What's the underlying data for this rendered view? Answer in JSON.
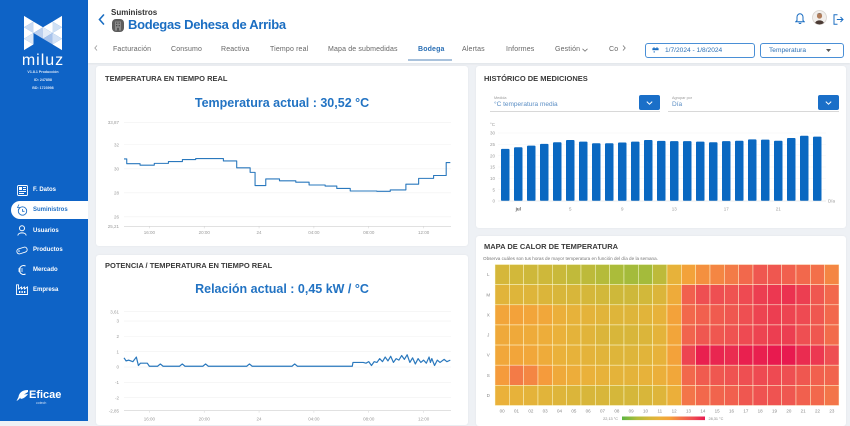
{
  "sidebar": {
    "brand": "miluz",
    "version": "V1.8.1 Producción",
    "meta_1": "ID: 247858",
    "meta_2": "BD: 1723998",
    "items": [
      {
        "label": "F. Datos",
        "icon": "data-grid-icon"
      },
      {
        "label": "Suministros",
        "icon": "supply-icon",
        "active": true
      },
      {
        "label": "Usuarios",
        "icon": "user-icon"
      },
      {
        "label": "Productos",
        "icon": "product-tag-icon"
      },
      {
        "label": "Mercado",
        "icon": "euro-icon"
      },
      {
        "label": "Empresa",
        "icon": "factory-icon"
      }
    ],
    "footer_logo": {
      "name": "Eficae",
      "tagline": "cotech"
    }
  },
  "header": {
    "breadcrumb": "Suministros",
    "title": "Bodegas Dehesa de Arriba",
    "icons": [
      "bell-icon",
      "user-avatar",
      "logout-icon"
    ]
  },
  "tabs": {
    "items": [
      {
        "label": "Facturación"
      },
      {
        "label": "Consumo"
      },
      {
        "label": "Reactiva"
      },
      {
        "label": "Tiempo real"
      },
      {
        "label": "Mapa de submedidas"
      },
      {
        "label": "Bodega",
        "active": true
      },
      {
        "label": "Alertas"
      },
      {
        "label": "Informes"
      },
      {
        "label": "Gestión",
        "dropdown": true
      },
      {
        "label": "Co"
      }
    ]
  },
  "filters": {
    "date_range": "1/7/2024 - 1/8/2024",
    "variable": "Temperatura"
  },
  "panels": {
    "temp_realtime": {
      "title": "TEMPERATURA EN TIEMPO REAL",
      "headline": "Temperatura actual : 30,52 °C"
    },
    "power_temp": {
      "title": "POTENCIA / TEMPERATURA EN TIEMPO REAL",
      "headline": "Relación actual : 0,45 kW / °C"
    },
    "history": {
      "title": "HISTÓRICO DE MEDICIONES",
      "measure_label": "Medida",
      "measure_value": "°C temperatura media",
      "group_label": "Agrupar por",
      "group_value": "Día"
    },
    "heatmap": {
      "title": "MAPA DE CALOR DE TEMPERATURA",
      "subtitle": "Observa cuáles son tus horas de mayor temperatura en función del día de la semana."
    }
  },
  "colors": {
    "sidebar": "#0e63c6",
    "accent": "#1b6ec2",
    "line": "#2a78bd",
    "bar": "#0a68c1",
    "heat_scale": [
      "#5db543",
      "#aebc3a",
      "#d2b83a",
      "#eab13a",
      "#f5a03a",
      "#f3714a",
      "#ee4d52",
      "#e8194f"
    ]
  },
  "chart_data": [
    {
      "type": "line",
      "title": "Temperatura actual : 30,52 °C",
      "xlabel": "",
      "ylabel": "°C",
      "step": true,
      "xlim": [
        14.15,
        38.0
      ],
      "ylim": [
        25.21,
        33.87
      ],
      "grid": true,
      "y_ticks": [
        {
          "value": 33.87,
          "label": "33,87"
        },
        {
          "value": 32,
          "label": "32"
        },
        {
          "value": 30,
          "label": "30"
        },
        {
          "value": 28,
          "label": "28"
        },
        {
          "value": 26,
          "label": "26"
        },
        {
          "value": 25.21,
          "label": "25,21"
        }
      ],
      "x_ticks": [
        {
          "t": 16,
          "label": "16:00"
        },
        {
          "t": 20,
          "label": "20:00"
        },
        {
          "t": 24,
          "label": "24"
        },
        {
          "t": 28,
          "label": "04:00"
        },
        {
          "t": 32,
          "label": "08:00"
        },
        {
          "t": 36,
          "label": "12:00"
        }
      ],
      "series": [
        {
          "name": "Temperatura",
          "points": [
            [
              14.15,
              30.82
            ],
            [
              14.35,
              30.42
            ],
            [
              15.32,
              30.3
            ],
            [
              16.36,
              30.45
            ],
            [
              17.39,
              30.6
            ],
            [
              18.41,
              30.77
            ],
            [
              19.38,
              30.85
            ],
            [
              21.4,
              30.65
            ],
            [
              22.37,
              30.08
            ],
            [
              23.35,
              29.7
            ],
            [
              23.71,
              28.6
            ],
            [
              24.49,
              29.15
            ],
            [
              25.49,
              29.0
            ],
            [
              26.68,
              28.88
            ],
            [
              27.65,
              28.65
            ],
            [
              28.82,
              28.56
            ],
            [
              29.67,
              28.36
            ],
            [
              30.65,
              28.15
            ],
            [
              32.59,
              28.12
            ],
            [
              33.57,
              28.24
            ],
            [
              34.71,
              28.72
            ],
            [
              35.64,
              29.2
            ],
            [
              36.73,
              29.44
            ],
            [
              37.65,
              30.52
            ],
            [
              37.95,
              30.52
            ]
          ]
        }
      ]
    },
    {
      "type": "line",
      "title": "Relación actual : 0,45 kW / °C",
      "xlabel": "",
      "ylabel": "kW / °C",
      "step": false,
      "xlim": [
        14.15,
        38.0
      ],
      "ylim": [
        -2.85,
        3.61
      ],
      "grid": true,
      "y_ticks": [
        {
          "value": 3.61,
          "label": "3,61"
        },
        {
          "value": 3,
          "label": "3"
        },
        {
          "value": 2,
          "label": "2"
        },
        {
          "value": 1,
          "label": "1"
        },
        {
          "value": 0,
          "label": "0"
        },
        {
          "value": -1,
          "label": "-1"
        },
        {
          "value": -2,
          "label": "-2"
        },
        {
          "value": -2.85,
          "label": "-2,85"
        }
      ],
      "x_ticks": [
        {
          "t": 16,
          "label": "16:00"
        },
        {
          "t": 20,
          "label": "20:00"
        },
        {
          "t": 24,
          "label": "24"
        },
        {
          "t": 28,
          "label": "04:00"
        },
        {
          "t": 32,
          "label": "08:00"
        },
        {
          "t": 36,
          "label": "12:00"
        }
      ],
      "series": [
        {
          "name": "Potencia / Temperatura",
          "points": [
            [
              14.15,
              0.6
            ],
            [
              14.3,
              0.4
            ],
            [
              14.5,
              0.45
            ],
            [
              14.8,
              0.35
            ],
            [
              15.05,
              0.65
            ],
            [
              15.2,
              0.1
            ],
            [
              15.35,
              0.25
            ],
            [
              15.85,
              0.25
            ],
            [
              16.0,
              0.05
            ],
            [
              16.6,
              0.05
            ],
            [
              16.8,
              0.2
            ],
            [
              17.0,
              0.05
            ],
            [
              18.2,
              0.05
            ],
            [
              18.4,
              0.2
            ],
            [
              18.6,
              0.05
            ],
            [
              19.9,
              0.05
            ],
            [
              20.1,
              0.2
            ],
            [
              20.3,
              0.05
            ],
            [
              23.1,
              0.05
            ],
            [
              23.3,
              0.2
            ],
            [
              23.5,
              0.05
            ],
            [
              26.4,
              0.05
            ],
            [
              26.6,
              0.2
            ],
            [
              26.8,
              0.05
            ],
            [
              30.8,
              0.05
            ],
            [
              30.85,
              0.3
            ],
            [
              31.6,
              0.3
            ],
            [
              31.8,
              0.25
            ],
            [
              32.0,
              0.35
            ],
            [
              32.2,
              0.1
            ],
            [
              32.4,
              0.35
            ],
            [
              32.6,
              0.3
            ],
            [
              32.8,
              0.55
            ],
            [
              33.0,
              0.35
            ],
            [
              33.2,
              0.65
            ],
            [
              33.4,
              0.4
            ],
            [
              33.6,
              0.7
            ],
            [
              33.8,
              0.3
            ],
            [
              34.0,
              0.55
            ],
            [
              34.2,
              0.45
            ],
            [
              34.4,
              0.75
            ],
            [
              34.6,
              0.5
            ],
            [
              34.8,
              0.8
            ],
            [
              35.0,
              0.3
            ],
            [
              35.2,
              0.6
            ],
            [
              35.4,
              0.2
            ],
            [
              35.6,
              0.55
            ],
            [
              35.8,
              0.3
            ],
            [
              36.0,
              0.45
            ],
            [
              36.2,
              0.25
            ],
            [
              36.4,
              0.65
            ],
            [
              36.5,
              0.3
            ],
            [
              36.6,
              0.55
            ],
            [
              36.8,
              0.1
            ],
            [
              37.0,
              0.45
            ],
            [
              37.2,
              0.3
            ],
            [
              37.5,
              0.5
            ],
            [
              37.7,
              0.35
            ],
            [
              37.95,
              0.45
            ]
          ]
        }
      ]
    },
    {
      "type": "bar",
      "title": "Histórico de mediciones",
      "xlabel": "Día",
      "ylabel": "°C",
      "ylim": [
        0,
        30
      ],
      "y_ticks": [
        0,
        5,
        10,
        15,
        20,
        25,
        30
      ],
      "categories": [
        "30",
        "1",
        "2",
        "3",
        "4",
        "5",
        "6",
        "7",
        "8",
        "9",
        "10",
        "11",
        "12",
        "13",
        "14",
        "15",
        "16",
        "17",
        "18",
        "19",
        "20",
        "21",
        "22",
        "23",
        "24"
      ],
      "values": [
        23.0,
        23.7,
        24.4,
        25.2,
        25.9,
        26.9,
        26.2,
        25.5,
        25.5,
        25.8,
        26.2,
        26.9,
        26.5,
        26.4,
        26.4,
        26.2,
        25.9,
        26.4,
        26.6,
        27.2,
        27.1,
        26.6,
        27.8,
        28.8,
        28.4
      ],
      "x_ticks": [
        {
          "index": 1,
          "label": "jul"
        },
        {
          "index": 5,
          "label": "5"
        },
        {
          "index": 9,
          "label": "9"
        },
        {
          "index": 13,
          "label": "13"
        },
        {
          "index": 17,
          "label": "17"
        },
        {
          "index": 21,
          "label": "21"
        }
      ]
    },
    {
      "type": "heatmap",
      "title": "Mapa de calor de temperatura",
      "rows": [
        "L",
        "M",
        "X",
        "J",
        "V",
        "S",
        "D"
      ],
      "columns": [
        "00",
        "01",
        "02",
        "03",
        "04",
        "05",
        "06",
        "07",
        "08",
        "09",
        "10",
        "11",
        "12",
        "13",
        "14",
        "15",
        "16",
        "17",
        "18",
        "19",
        "20",
        "21",
        "22",
        "23"
      ],
      "min": 22.13,
      "max": 28.31,
      "legend": {
        "min_label": "22,13 °C",
        "max_label": "28,31 °C"
      },
      "values": [
        [
          24.2,
          24.1,
          24.0,
          24.0,
          23.9,
          23.7,
          23.6,
          23.4,
          23.2,
          23.1,
          23.1,
          23.6,
          24.8,
          25.6,
          26.0,
          26.2,
          26.4,
          26.8,
          27.2,
          27.2,
          27.0,
          26.8,
          26.6,
          26.2
        ],
        [
          24.6,
          24.5,
          24.5,
          24.4,
          24.3,
          24.3,
          24.2,
          24.1,
          24.0,
          24.0,
          24.1,
          24.4,
          25.2,
          27.0,
          27.4,
          27.4,
          27.3,
          27.5,
          27.7,
          27.8,
          27.9,
          27.7,
          27.2,
          26.8
        ],
        [
          25.5,
          25.6,
          25.5,
          25.4,
          25.0,
          24.8,
          24.7,
          24.6,
          24.5,
          24.5,
          24.6,
          24.8,
          25.6,
          26.8,
          27.0,
          27.1,
          27.2,
          27.4,
          27.6,
          27.7,
          27.6,
          27.5,
          27.2,
          26.8
        ],
        [
          25.3,
          25.3,
          25.2,
          25.1,
          24.9,
          24.7,
          24.6,
          24.4,
          24.3,
          24.3,
          24.4,
          24.7,
          25.5,
          26.9,
          27.2,
          27.2,
          27.3,
          27.5,
          27.6,
          27.7,
          27.7,
          27.4,
          27.2,
          26.7
        ],
        [
          25.4,
          25.5,
          25.4,
          25.2,
          24.9,
          24.8,
          24.7,
          24.6,
          24.5,
          24.5,
          24.6,
          24.8,
          25.6,
          27.6,
          28.2,
          28.1,
          28.0,
          28.2,
          28.2,
          28.3,
          28.3,
          28.0,
          27.8,
          27.4
        ],
        [
          25.8,
          26.4,
          26.2,
          25.8,
          25.3,
          25.1,
          24.9,
          24.8,
          24.7,
          24.7,
          24.8,
          25.0,
          25.4,
          26.8,
          27.1,
          27.2,
          27.3,
          27.4,
          27.5,
          27.5,
          27.4,
          27.2,
          27.0,
          26.9
        ],
        [
          24.9,
          24.8,
          24.7,
          24.6,
          24.5,
          24.4,
          24.3,
          24.3,
          24.2,
          24.2,
          24.3,
          24.5,
          25.0,
          26.5,
          26.8,
          26.9,
          27.0,
          27.2,
          27.3,
          27.3,
          27.2,
          27.0,
          26.8,
          26.5
        ]
      ]
    }
  ]
}
